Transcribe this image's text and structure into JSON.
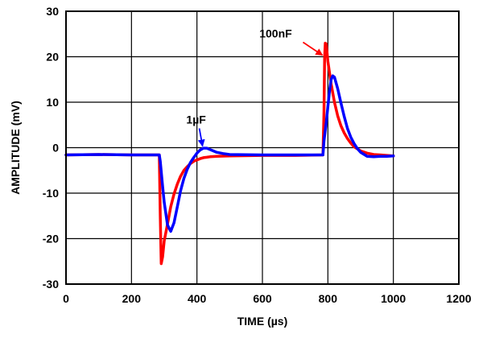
{
  "chart_data": {
    "type": "line",
    "title": "",
    "xlabel": "TIME (µs)",
    "ylabel": "AMPLITUDE (mV)",
    "xlim": [
      0,
      1200
    ],
    "ylim": [
      -30,
      30
    ],
    "x_ticks": [
      0,
      200,
      400,
      600,
      800,
      1000,
      1200
    ],
    "y_ticks": [
      -30,
      -20,
      -10,
      0,
      10,
      20,
      30
    ],
    "x_tick_labels": [
      "0",
      "200",
      "400",
      "600",
      "800",
      "1000",
      "1200"
    ],
    "y_tick_labels": [
      "-30",
      "-20",
      "-10",
      "0",
      "10",
      "20",
      "30"
    ],
    "grid": true,
    "series": [
      {
        "name": "100nF",
        "color": "#ff0000",
        "x": [
          0,
          100,
          200,
          285,
          288,
          291,
          295,
          300,
          310,
          320,
          330,
          340,
          350,
          360,
          370,
          380,
          390,
          400,
          410,
          420,
          430,
          440,
          460,
          500,
          600,
          700,
          785,
          788,
          790,
          792,
          795,
          800,
          810,
          820,
          830,
          840,
          850,
          860,
          870,
          880,
          900,
          920,
          940,
          960,
          980,
          1000
        ],
        "y": [
          -1.6,
          -1.5,
          -1.6,
          -1.6,
          -15,
          -25.5,
          -24,
          -20.5,
          -16.8,
          -13,
          -10.2,
          -8,
          -6.3,
          -5,
          -4.2,
          -3.5,
          -3,
          -2.7,
          -2.4,
          -2.2,
          -2.1,
          -2,
          -1.9,
          -1.8,
          -1.7,
          -1.7,
          -1.6,
          8,
          20,
          23,
          22.8,
          19,
          14,
          10,
          7,
          4.8,
          3.2,
          2,
          1,
          0.2,
          -0.7,
          -1.2,
          -1.5,
          -1.6,
          -1.7,
          -1.8
        ]
      },
      {
        "name": "1µF",
        "color": "#0000ff",
        "x": [
          0,
          100,
          200,
          285,
          288,
          295,
          300,
          310,
          320,
          330,
          340,
          350,
          360,
          370,
          380,
          390,
          400,
          410,
          420,
          430,
          440,
          450,
          460,
          480,
          500,
          600,
          700,
          785,
          788,
          795,
          800,
          805,
          810,
          815,
          820,
          830,
          840,
          850,
          860,
          870,
          880,
          890,
          900,
          920,
          940,
          960,
          980,
          1000
        ],
        "y": [
          -1.6,
          -1.5,
          -1.6,
          -1.6,
          -3,
          -8.5,
          -12,
          -17,
          -18.4,
          -16.5,
          -13,
          -9.5,
          -6.8,
          -4.8,
          -3.3,
          -2.2,
          -1.2,
          -0.5,
          -0.1,
          -0.1,
          -0.4,
          -0.7,
          -1,
          -1.3,
          -1.5,
          -1.6,
          -1.6,
          -1.6,
          1.5,
          5.5,
          9,
          12.5,
          15,
          15.8,
          15.5,
          13,
          9.8,
          6.8,
          4.2,
          2.3,
          0.9,
          -0.2,
          -1,
          -1.9,
          -2,
          -1.9,
          -1.9,
          -1.8
        ]
      }
    ],
    "annotations": [
      {
        "text": "100nF",
        "color": "#ff0000",
        "points_to": {
          "x": 788,
          "y": 20
        }
      },
      {
        "text": "1µF",
        "color": "#0000ff",
        "points_to": {
          "x": 422,
          "y": 0
        }
      }
    ]
  }
}
